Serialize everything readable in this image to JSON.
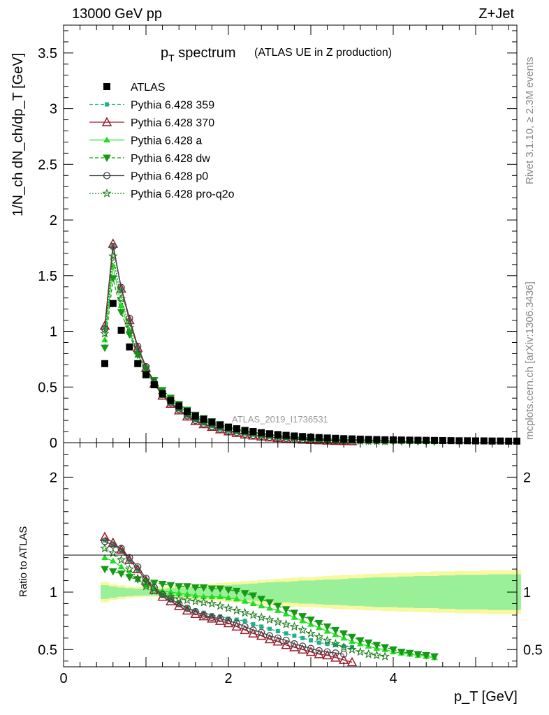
{
  "header": {
    "energy_label": "13000 GeV pp",
    "process_label": "Z+Jet",
    "title_main": "p",
    "title_main_sub": "T",
    "title_main_rest": " spectrum",
    "title_paren": "(ATLAS UE in Z production)",
    "watermark": "ATLAS_2019_I1736531",
    "side_rivet": "Rivet 3.1.10, ≥ 2.3M events",
    "side_mcplots": "mcplots.cern.ch [arXiv:1306.3436]"
  },
  "axes": {
    "ylabel_top": "1/N_ch dN_ch/dp_T [GeV]",
    "ylabel_bottom": "Ratio to ATLAS",
    "xlabel": "p_T [GeV]",
    "top_yticks": [
      "0",
      "0.5",
      "1",
      "1.5",
      "2",
      "2.5",
      "3",
      "3.5"
    ],
    "bottom_yticks": [
      "0.5",
      "1",
      "2"
    ],
    "xticks": [
      "0",
      "2",
      "4"
    ]
  },
  "colors": {
    "data": "#000000",
    "p359": "#20b08a",
    "p370": "#9a1a2a",
    "pa": "#22dd22",
    "pdw": "#159a15",
    "pp0": "#444444",
    "pq2o": "#1e7a1e",
    "band_inner": "#99f099",
    "band_outer": "#f8f8a0"
  },
  "legend": [
    {
      "key": "data",
      "label": "ATLAS"
    },
    {
      "key": "p359",
      "label": "Pythia 6.428 359"
    },
    {
      "key": "p370",
      "label": "Pythia 6.428 370"
    },
    {
      "key": "pa",
      "label": "Pythia 6.428 a"
    },
    {
      "key": "pdw",
      "label": "Pythia 6.428 dw"
    },
    {
      "key": "pp0",
      "label": "Pythia 6.428 p0"
    },
    {
      "key": "pq2o",
      "label": "Pythia 6.428 pro-q2o"
    }
  ],
  "chart_data": {
    "type": "line",
    "x_range": [
      0,
      5.5
    ],
    "top_ylim": [
      0,
      3.75
    ],
    "bottom_ylim": [
      0.35,
      2.3
    ],
    "log_x": false,
    "x": [
      0.5,
      0.6,
      0.7,
      0.8,
      0.9,
      1.0,
      1.1,
      1.2,
      1.3,
      1.4,
      1.5,
      1.6,
      1.7,
      1.8,
      1.9,
      2.0,
      2.1,
      2.2,
      2.3,
      2.4,
      2.5,
      2.6,
      2.7,
      2.8,
      2.9,
      3.0,
      3.1,
      3.2,
      3.3,
      3.4,
      3.5,
      3.6,
      3.7,
      3.8,
      3.9,
      4.0,
      4.1,
      4.2,
      4.3,
      4.4,
      4.5,
      4.6,
      4.7,
      4.8,
      4.9,
      5.0,
      5.1,
      5.2,
      5.3,
      5.4,
      5.5
    ],
    "data_values": [
      0.71,
      1.25,
      1.01,
      0.86,
      0.71,
      0.61,
      0.52,
      0.44,
      0.38,
      0.33,
      0.28,
      0.24,
      0.21,
      0.185,
      0.16,
      0.14,
      0.125,
      0.11,
      0.1,
      0.09,
      0.08,
      0.073,
      0.066,
      0.06,
      0.055,
      0.05,
      0.046,
      0.042,
      0.039,
      0.036,
      0.034,
      0.032,
      0.03,
      0.028,
      0.026,
      0.025,
      0.024,
      0.023,
      0.022,
      0.021,
      0.02,
      0.019,
      0.018,
      0.017,
      0.017,
      0.016,
      0.016,
      0.015,
      0.015,
      0.014,
      0.014
    ],
    "band_inner_halfwidth": [
      0.06,
      0.05,
      0.04,
      0.035,
      0.03,
      0.03,
      0.03,
      0.03,
      0.035,
      0.04,
      0.04,
      0.045,
      0.05,
      0.05,
      0.055,
      0.06,
      0.065,
      0.07,
      0.075,
      0.08,
      0.085,
      0.09,
      0.09,
      0.095,
      0.1,
      0.1,
      0.105,
      0.11,
      0.11,
      0.115,
      0.12,
      0.12,
      0.125,
      0.13,
      0.13,
      0.13,
      0.135,
      0.135,
      0.14,
      0.14,
      0.14,
      0.145,
      0.145,
      0.15,
      0.15,
      0.15,
      0.15,
      0.155,
      0.155,
      0.155,
      0.155
    ],
    "band_outer_halfwidth": [
      0.09,
      0.07,
      0.06,
      0.05,
      0.045,
      0.04,
      0.04,
      0.045,
      0.05,
      0.055,
      0.06,
      0.065,
      0.07,
      0.075,
      0.08,
      0.085,
      0.09,
      0.095,
      0.1,
      0.105,
      0.11,
      0.115,
      0.12,
      0.125,
      0.13,
      0.13,
      0.135,
      0.14,
      0.145,
      0.15,
      0.15,
      0.155,
      0.16,
      0.16,
      0.165,
      0.165,
      0.17,
      0.17,
      0.175,
      0.175,
      0.18,
      0.18,
      0.18,
      0.185,
      0.185,
      0.185,
      0.19,
      0.19,
      0.19,
      0.19,
      0.19
    ],
    "series": [
      {
        "key": "p359",
        "name": "Pythia 6.428 359",
        "ratio": [
          1.45,
          1.41,
          1.36,
          1.27,
          1.19,
          1.1,
          1.03,
          0.98,
          0.93,
          0.9,
          0.86,
          0.84,
          0.82,
          0.8,
          0.79,
          0.77,
          0.76,
          0.75,
          0.72,
          0.7,
          0.68,
          0.66,
          0.64,
          0.62,
          0.6,
          0.58,
          0.56,
          0.55,
          0.54,
          0.53,
          0.52
        ]
      },
      {
        "key": "p370",
        "name": "Pythia 6.428 370",
        "ratio": [
          1.48,
          1.43,
          1.37,
          1.28,
          1.2,
          1.1,
          1.02,
          0.96,
          0.92,
          0.88,
          0.84,
          0.81,
          0.79,
          0.77,
          0.75,
          0.73,
          0.7,
          0.67,
          0.64,
          0.62,
          0.59,
          0.57,
          0.54,
          0.52,
          0.5,
          0.48,
          0.46,
          0.45,
          0.43,
          0.41,
          0.39
        ]
      },
      {
        "key": "pa",
        "name": "Pythia 6.428 a",
        "ratio": [
          1.3,
          1.27,
          1.22,
          1.16,
          1.11,
          1.06,
          1.03,
          1.01,
          1.0,
          0.99,
          0.98,
          0.97,
          0.96,
          0.96,
          0.96,
          0.95,
          0.94,
          0.92,
          0.9,
          0.88,
          0.86,
          0.84,
          0.81,
          0.78,
          0.75,
          0.72,
          0.69,
          0.66,
          0.63,
          0.6,
          0.57,
          0.55,
          0.53,
          0.51,
          0.5,
          0.48,
          0.47,
          0.46,
          0.45,
          0.44,
          0.43
        ]
      },
      {
        "key": "pdw",
        "name": "Pythia 6.428 dw",
        "ratio": [
          1.2,
          1.18,
          1.16,
          1.13,
          1.11,
          1.09,
          1.08,
          1.07,
          1.06,
          1.05,
          1.05,
          1.04,
          1.04,
          1.03,
          1.03,
          1.02,
          1.01,
          0.99,
          0.97,
          0.94,
          0.91,
          0.88,
          0.85,
          0.82,
          0.79,
          0.76,
          0.73,
          0.7,
          0.67,
          0.64,
          0.61,
          0.58,
          0.56,
          0.54,
          0.52,
          0.5,
          0.48,
          0.47,
          0.46,
          0.45,
          0.44
        ]
      },
      {
        "key": "pp0",
        "name": "Pythia 6.428 p0",
        "ratio": [
          1.44,
          1.41,
          1.38,
          1.3,
          1.22,
          1.12,
          1.04,
          0.98,
          0.94,
          0.9,
          0.86,
          0.83,
          0.8,
          0.78,
          0.77,
          0.75,
          0.73,
          0.7,
          0.67,
          0.65,
          0.62,
          0.6,
          0.58,
          0.55,
          0.53,
          0.51,
          0.49,
          0.48,
          0.47,
          0.46
        ]
      },
      {
        "key": "pq2o",
        "name": "Pythia 6.428 pro-q2o",
        "ratio": [
          1.38,
          1.34,
          1.28,
          1.2,
          1.12,
          1.05,
          1.01,
          0.98,
          0.96,
          0.94,
          0.93,
          0.92,
          0.91,
          0.9,
          0.88,
          0.86,
          0.84,
          0.82,
          0.8,
          0.78,
          0.76,
          0.74,
          0.72,
          0.7,
          0.67,
          0.64,
          0.61,
          0.58,
          0.55,
          0.52,
          0.5,
          0.48,
          0.46,
          0.45,
          0.44
        ]
      }
    ]
  }
}
